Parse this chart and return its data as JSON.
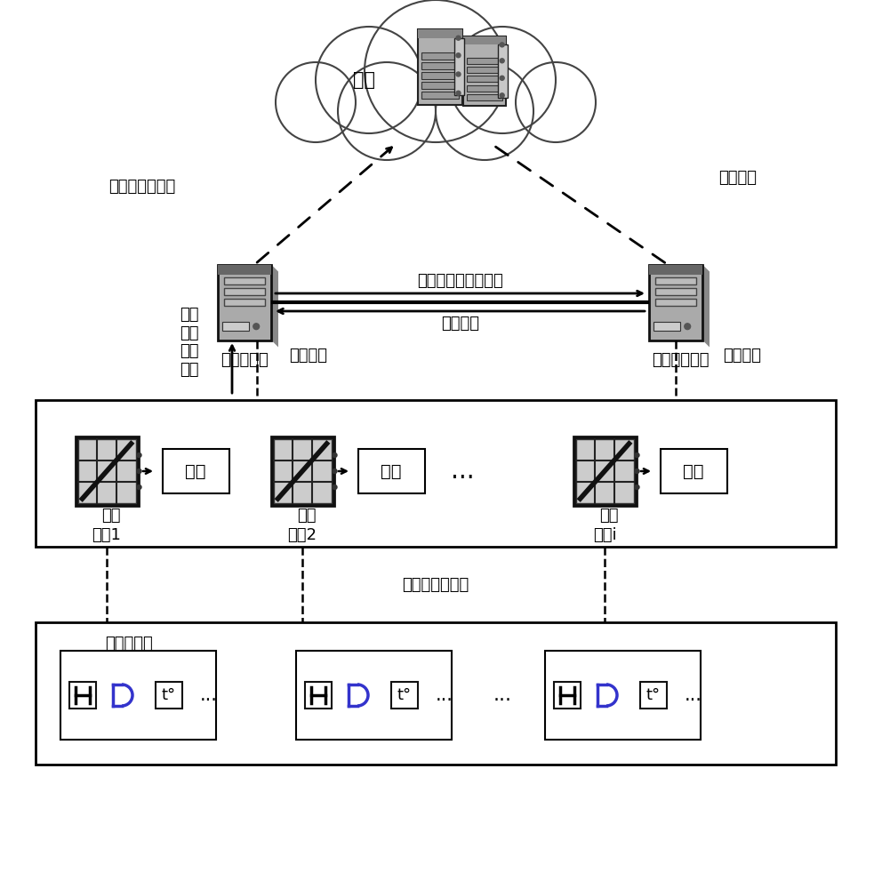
{
  "bg_color": "#ffffff",
  "text_color": "#000000",
  "cloud_label": "云端",
  "main_node_label": "主边缘节点",
  "aux_node_label": "辅助边缘节点",
  "unload_label": "卸载任务到云端",
  "wireless_cloud_label": "无线连接",
  "assign_label": "分配任务给辅助节点",
  "wired_label": "有线连接",
  "upload_label": "上传\n任务\n到主\n节点",
  "wireless_main_label": "无线连接",
  "wireless_aux_label": "无线连接",
  "terminal1_label": "终端1",
  "terminal2_label": "终端2",
  "terminali_label": "终端i",
  "task_label": "任务",
  "generate_label": "生成",
  "dots_label": "...",
  "short_wireless_label": "短距离无线通信",
  "sensor_box_label": "传感器节点",
  "font_size_main": 14,
  "font_size_small": 13,
  "font_size_label": 13
}
